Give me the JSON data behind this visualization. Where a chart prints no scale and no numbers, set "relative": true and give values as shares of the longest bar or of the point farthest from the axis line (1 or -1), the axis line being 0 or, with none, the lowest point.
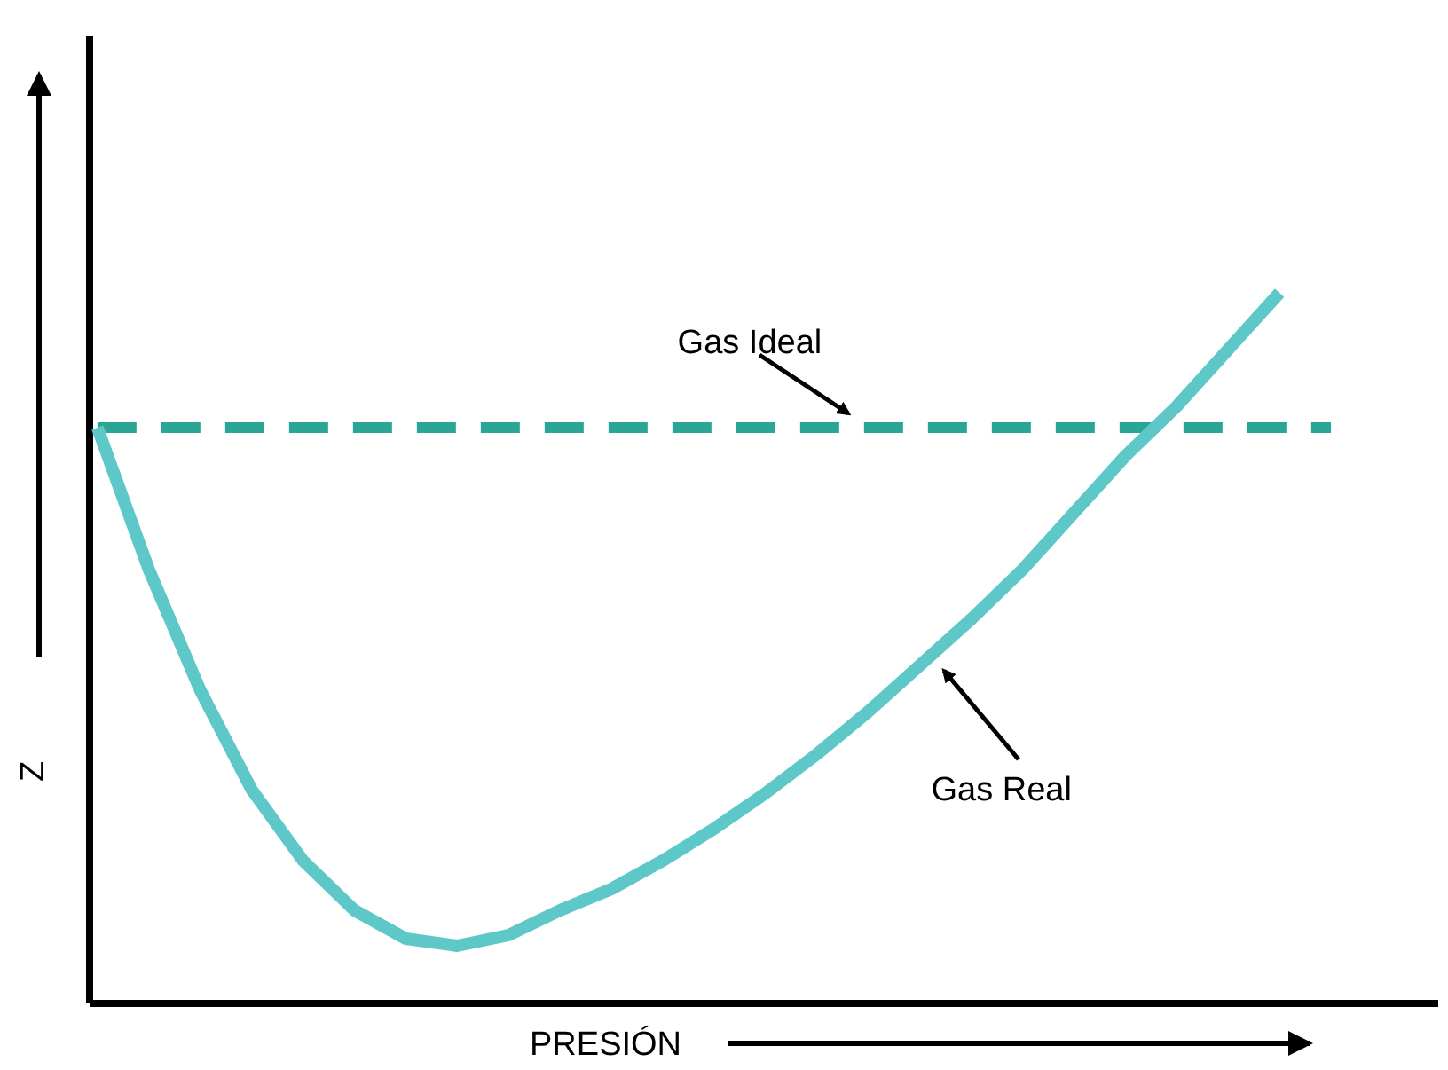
{
  "chart_data": {
    "type": "line",
    "relative": true,
    "xlabel": "PRESIÓN",
    "ylabel": "Z",
    "grid": false,
    "categories": [
      null,
      null,
      null,
      null,
      null,
      null,
      null,
      null,
      null,
      null,
      null,
      null,
      null,
      null,
      null,
      null,
      null,
      null,
      null,
      null,
      null,
      null,
      null,
      null,
      null
    ],
    "series": [
      {
        "name": "Gas Ideal",
        "color": "#2aa596",
        "line_style": "dashed",
        "values": [
          0.81,
          0.81,
          0.81,
          0.81,
          0.81,
          0.81,
          0.81,
          0.81,
          0.81,
          0.81,
          0.81,
          0.81,
          0.81,
          0.81,
          0.81,
          0.81,
          0.81,
          0.81,
          0.81,
          0.81,
          0.81,
          0.81,
          0.81,
          0.81,
          0.81
        ]
      },
      {
        "name": "Gas Real",
        "color": "#5ec8c8",
        "line_style": "solid",
        "values": [
          0.81,
          0.61,
          0.44,
          0.3,
          0.2,
          0.13,
          0.09,
          0.08,
          0.095,
          0.13,
          0.16,
          0.2,
          0.245,
          0.295,
          0.35,
          0.41,
          0.475,
          0.54,
          0.61,
          0.69,
          0.77,
          0.84,
          0.92,
          1.0,
          null
        ]
      }
    ]
  }
}
